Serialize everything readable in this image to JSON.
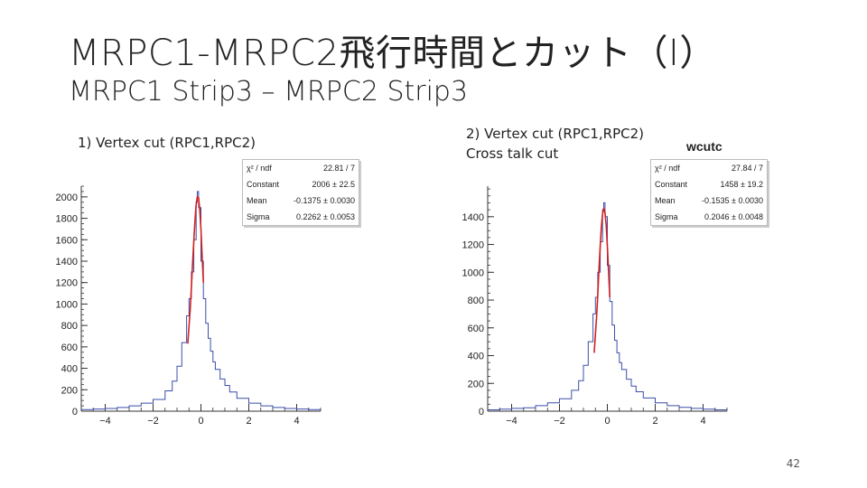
{
  "slide": {
    "title": "MRPC1-MRPC2飛行時間とカット（I）",
    "subtitle": "MRPC1 Strip3 – MRPC2 Strip3",
    "page_number": "42"
  },
  "colors": {
    "histogram": "#3a4fa8",
    "fit": "#d42020",
    "axis": "#333333"
  },
  "chart_data": [
    {
      "type": "line",
      "caption": "1) Vertex cut (RPC1,RPC2)",
      "hist_name": "",
      "xlim": [
        -5,
        5
      ],
      "ylim": [
        0,
        2100
      ],
      "xticks": [
        -4,
        -2,
        0,
        2,
        4
      ],
      "yticks": [
        0,
        200,
        400,
        600,
        800,
        1000,
        1200,
        1400,
        1600,
        1800,
        2000
      ],
      "series": [
        {
          "name": "histogram",
          "x": [
            -5,
            -4.5,
            -4,
            -3.5,
            -3,
            -2.5,
            -2,
            -1.5,
            -1.2,
            -1,
            -0.8,
            -0.6,
            -0.5,
            -0.4,
            -0.3,
            -0.2,
            -0.15,
            -0.1,
            0,
            0.1,
            0.2,
            0.3,
            0.4,
            0.5,
            0.6,
            0.8,
            1,
            1.2,
            1.5,
            2,
            2.5,
            3,
            3.5,
            4,
            4.5,
            5
          ],
          "values": [
            15,
            20,
            25,
            35,
            50,
            75,
            110,
            190,
            280,
            420,
            640,
            890,
            1050,
            1300,
            1600,
            1950,
            2050,
            1900,
            1400,
            1050,
            820,
            680,
            560,
            460,
            390,
            300,
            240,
            180,
            120,
            75,
            50,
            35,
            25,
            20,
            15,
            10
          ]
        },
        {
          "name": "fit",
          "x": [
            -0.55,
            -0.45,
            -0.4,
            -0.35,
            -0.3,
            -0.25,
            -0.2,
            -0.15,
            -0.1,
            -0.05,
            0,
            0.05,
            0.1
          ],
          "values": [
            630,
            950,
            1150,
            1370,
            1590,
            1780,
            1930,
            2000,
            1990,
            1880,
            1700,
            1450,
            1200
          ]
        }
      ],
      "stats": {
        "rows": [
          {
            "label": "χ² / ndf",
            "value": "22.81 / 7"
          },
          {
            "label": "Constant",
            "value": "2006 ± 22.5"
          },
          {
            "label": "Mean",
            "value": "-0.1375 ± 0.0030"
          },
          {
            "label": "Sigma",
            "value": "0.2262 ± 0.0053"
          }
        ]
      }
    },
    {
      "type": "line",
      "caption": "2) Vertex cut (RPC1,RPC2)\nCross talk cut",
      "caption_lines": [
        "2) Vertex cut (RPC1,RPC2)",
        "Cross talk cut"
      ],
      "hist_name": "wcutc",
      "xlim": [
        -5,
        5
      ],
      "ylim": [
        0,
        1620
      ],
      "xticks": [
        -4,
        -2,
        0,
        2,
        4
      ],
      "yticks": [
        0,
        200,
        400,
        600,
        800,
        1000,
        1200,
        1400
      ],
      "series": [
        {
          "name": "histogram",
          "x": [
            -5,
            -4.5,
            -4,
            -3.5,
            -3,
            -2.5,
            -2,
            -1.5,
            -1.2,
            -1,
            -0.8,
            -0.6,
            -0.5,
            -0.4,
            -0.3,
            -0.2,
            -0.15,
            -0.1,
            0,
            0.1,
            0.2,
            0.3,
            0.4,
            0.5,
            0.6,
            0.8,
            1,
            1.2,
            1.5,
            2,
            2.5,
            3,
            3.5,
            4,
            4.5,
            5
          ],
          "values": [
            10,
            15,
            20,
            25,
            40,
            60,
            90,
            150,
            220,
            330,
            500,
            700,
            820,
            1000,
            1220,
            1450,
            1500,
            1400,
            1050,
            790,
            620,
            510,
            420,
            350,
            300,
            230,
            180,
            140,
            95,
            60,
            40,
            28,
            20,
            15,
            10,
            8
          ]
        },
        {
          "name": "fit",
          "x": [
            -0.55,
            -0.45,
            -0.4,
            -0.35,
            -0.3,
            -0.25,
            -0.2,
            -0.15,
            -0.1,
            -0.05,
            0,
            0.05,
            0.1
          ],
          "values": [
            420,
            680,
            840,
            1020,
            1190,
            1330,
            1420,
            1458,
            1430,
            1340,
            1190,
            1010,
            820
          ]
        }
      ],
      "stats": {
        "rows": [
          {
            "label": "χ² / ndf",
            "value": "27.84 / 7"
          },
          {
            "label": "Constant",
            "value": "1458 ± 19.2"
          },
          {
            "label": "Mean",
            "value": "-0.1535 ± 0.0030"
          },
          {
            "label": "Sigma",
            "value": "0.2046 ± 0.0048"
          }
        ]
      }
    }
  ]
}
